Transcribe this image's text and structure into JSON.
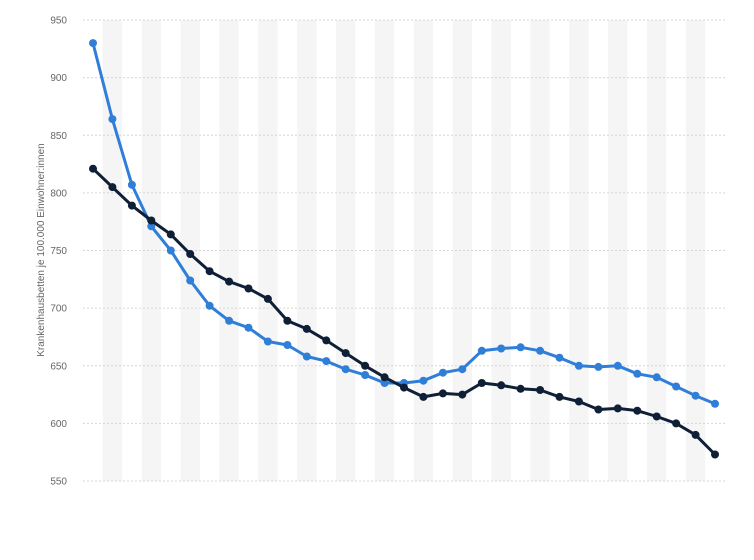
{
  "chart_data": {
    "type": "line",
    "title": "",
    "xlabel": "",
    "ylabel": "Krankenhausbetten je 100.000 Einwohner:innen",
    "ylim": [
      550,
      950
    ],
    "yticks": [
      550,
      600,
      650,
      700,
      750,
      800,
      850,
      900,
      950
    ],
    "grid": true,
    "legend": "none",
    "x": [
      1,
      2,
      3,
      4,
      5,
      6,
      7,
      8,
      9,
      10,
      11,
      12,
      13,
      14,
      15,
      16,
      17,
      18,
      19,
      20,
      21,
      22,
      23,
      24,
      25,
      26,
      27,
      28,
      29,
      30,
      31,
      32,
      33
    ],
    "series": [
      {
        "color": "#2f7ed8",
        "values": [
          930,
          864,
          807,
          771,
          750,
          724,
          702,
          689,
          683,
          671,
          668,
          658,
          654,
          647,
          642,
          635,
          635,
          637,
          644,
          647,
          663,
          665,
          666,
          663,
          657,
          650,
          649,
          650,
          643,
          640,
          632,
          624,
          617
        ]
      },
      {
        "color": "#0e1f36",
        "values": [
          821,
          805,
          789,
          776,
          764,
          747,
          732,
          723,
          717,
          708,
          689,
          682,
          672,
          661,
          650,
          640,
          631,
          623,
          626,
          625,
          635,
          633,
          630,
          629,
          623,
          619,
          612,
          613,
          611,
          606,
          600,
          590,
          573
        ]
      }
    ]
  }
}
